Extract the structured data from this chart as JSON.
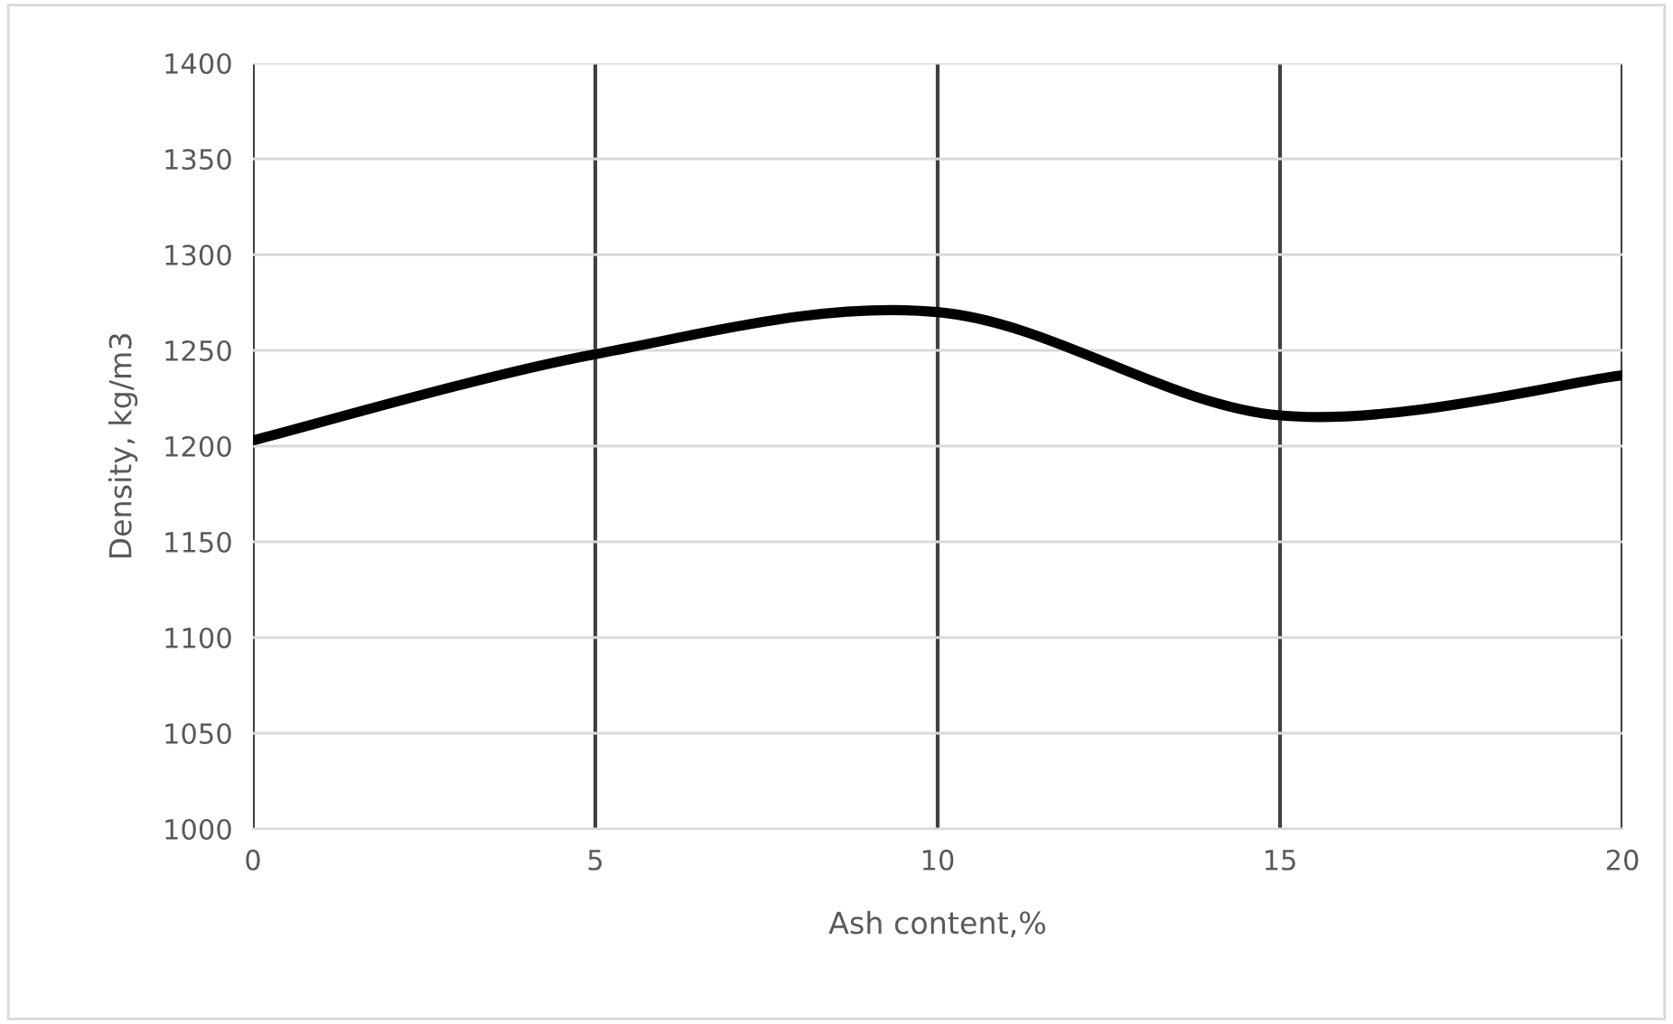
{
  "chart_data": {
    "type": "line",
    "xlabel": "Ash content,%",
    "ylabel": "Density, kg/m3",
    "x": [
      0,
      5,
      10,
      15,
      20
    ],
    "series": [
      {
        "color": "#000000",
        "values": [
          1203,
          1248,
          1270,
          1216,
          1237
        ]
      }
    ],
    "xlim": [
      0,
      20
    ],
    "xticks": [
      0,
      5,
      10,
      15,
      20
    ],
    "ylim": [
      1000,
      1400
    ],
    "yticks": [
      1000,
      1050,
      1100,
      1150,
      1200,
      1250,
      1300,
      1350,
      1400
    ],
    "grid": true,
    "marker": "none",
    "line_style": "solid"
  }
}
